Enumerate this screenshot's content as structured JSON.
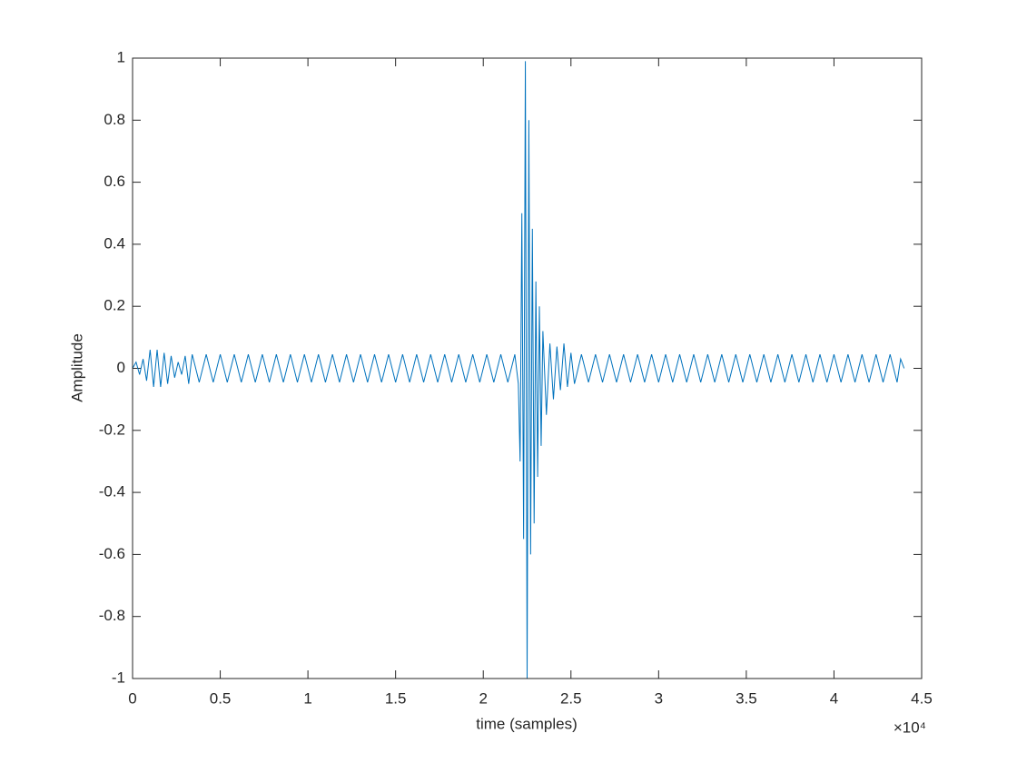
{
  "chart_data": {
    "type": "line",
    "xlabel": "time (samples)",
    "ylabel": "Amplitude",
    "x_multiplier": "×10⁴",
    "color": "#0072BD",
    "xlim": [
      0,
      45000
    ],
    "ylim": [
      -1,
      1
    ],
    "xticks": [
      0,
      {
        "value": 5000,
        "label": "0.5"
      },
      {
        "value": 10000,
        "label": "1"
      },
      {
        "value": 15000,
        "label": "1.5"
      },
      {
        "value": 20000,
        "label": "2"
      },
      {
        "value": 25000,
        "label": "2.5"
      },
      {
        "value": 30000,
        "label": "3"
      },
      {
        "value": 35000,
        "label": "3.5"
      },
      {
        "value": 40000,
        "label": "4"
      },
      {
        "value": 45000,
        "label": "4.5"
      }
    ],
    "yticks": [
      -1,
      -0.8,
      -0.6,
      -0.4,
      -0.2,
      0,
      0.2,
      0.4,
      0.6,
      0.8,
      1
    ],
    "x": [
      0,
      200,
      400,
      600,
      800,
      1000,
      1200,
      1400,
      1600,
      1800,
      2000,
      2200,
      2400,
      2600,
      2800,
      3000,
      3200,
      3400,
      3800,
      4200,
      4600,
      5000,
      5400,
      5800,
      6200,
      6600,
      7000,
      7400,
      7800,
      8200,
      8600,
      9000,
      9400,
      9800,
      10200,
      10600,
      11000,
      11400,
      11800,
      12200,
      12600,
      13000,
      13400,
      13800,
      14200,
      14600,
      15000,
      15400,
      15800,
      16200,
      16600,
      17000,
      17400,
      17800,
      18200,
      18600,
      19000,
      19400,
      19800,
      20200,
      20600,
      21000,
      21400,
      21800,
      22000,
      22100,
      22200,
      22300,
      22400,
      22500,
      22600,
      22700,
      22800,
      22900,
      23000,
      23100,
      23200,
      23300,
      23400,
      23600,
      23800,
      24000,
      24200,
      24400,
      24600,
      24800,
      25000,
      25200,
      25600,
      26000,
      26400,
      26800,
      27200,
      27600,
      28000,
      28400,
      28800,
      29200,
      29600,
      30000,
      30400,
      30800,
      31200,
      31600,
      32000,
      32400,
      32800,
      33200,
      33600,
      34000,
      34400,
      34800,
      35200,
      35600,
      36000,
      36400,
      36800,
      37200,
      37600,
      38000,
      38400,
      38800,
      39200,
      39600,
      40000,
      40400,
      40800,
      41200,
      41600,
      42000,
      42400,
      42800,
      43200,
      43600,
      43800,
      44000
    ],
    "values": [
      0,
      0.02,
      -0.02,
      0.03,
      -0.04,
      0.06,
      -0.06,
      0.06,
      -0.06,
      0.05,
      -0.05,
      0.04,
      -0.03,
      0.02,
      -0.02,
      0.04,
      -0.05,
      0.045,
      -0.045,
      0.045,
      -0.045,
      0.045,
      -0.045,
      0.045,
      -0.045,
      0.045,
      -0.045,
      0.045,
      -0.045,
      0.045,
      -0.045,
      0.045,
      -0.045,
      0.045,
      -0.045,
      0.045,
      -0.045,
      0.045,
      -0.045,
      0.045,
      -0.045,
      0.045,
      -0.045,
      0.045,
      -0.045,
      0.045,
      -0.045,
      0.045,
      -0.045,
      0.045,
      -0.045,
      0.045,
      -0.045,
      0.045,
      -0.045,
      0.045,
      -0.045,
      0.045,
      -0.045,
      0.045,
      -0.045,
      0.045,
      -0.045,
      0.045,
      -0.05,
      -0.3,
      0.5,
      -0.55,
      0.99,
      -1,
      0.8,
      -0.6,
      0.45,
      -0.5,
      0.28,
      -0.35,
      0.2,
      -0.25,
      0.12,
      -0.15,
      0.08,
      -0.1,
      0.07,
      -0.07,
      0.08,
      -0.06,
      0.05,
      -0.05,
      0.045,
      -0.045,
      0.045,
      -0.045,
      0.045,
      -0.045,
      0.045,
      -0.045,
      0.045,
      -0.045,
      0.045,
      -0.045,
      0.045,
      -0.045,
      0.045,
      -0.045,
      0.045,
      -0.045,
      0.045,
      -0.045,
      0.045,
      -0.045,
      0.045,
      -0.045,
      0.045,
      -0.045,
      0.045,
      -0.045,
      0.045,
      -0.045,
      0.045,
      -0.045,
      0.045,
      -0.045,
      0.045,
      -0.045,
      0.045,
      -0.045,
      0.045,
      -0.045,
      0.045,
      -0.045,
      0.045,
      -0.045,
      0.045,
      -0.045,
      0.03,
      0
    ]
  }
}
